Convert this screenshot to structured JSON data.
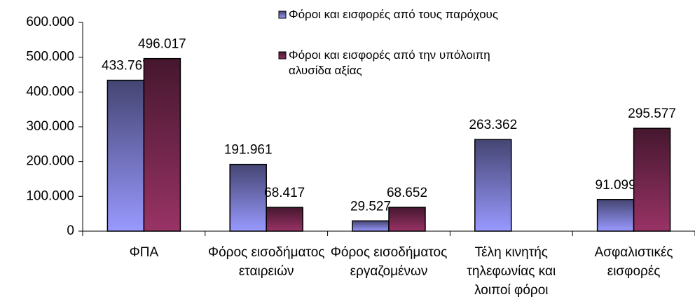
{
  "chart_data": {
    "type": "bar",
    "categories": [
      "ΦΠΑ",
      "Φόρος εισοδήματος εταιρειών",
      "Φόρος εισοδήματος εργαζομένων",
      "Τέλη κινητής τηλεφωνίας και λοιποί φόροι",
      "Ασφαλιστικές εισφορές"
    ],
    "series": [
      {
        "name": "Φόροι και εισφορές από τους παρόχους",
        "color": "#9999ff",
        "values": [
          433767,
          191961,
          29527,
          263362,
          91099
        ],
        "value_labels": [
          "433.767",
          "191.961",
          "29.527",
          "263.362",
          "91.099"
        ]
      },
      {
        "name": "Φόροι και εισφορές από την υπόλοιπη αλυσίδα αξίας",
        "color": "#993366",
        "values": [
          496017,
          68417,
          68652,
          null,
          295577
        ],
        "value_labels": [
          "496.017",
          "68.417",
          "68.652",
          null,
          "295.577"
        ]
      }
    ],
    "ylim": [
      0,
      600000
    ],
    "yticks": [
      0,
      {
        "value": 100000,
        "label": "100.000"
      },
      {
        "value": 200000,
        "label": "200.000"
      },
      {
        "value": 300000,
        "label": "300.000"
      },
      {
        "value": 400000,
        "label": "400.000"
      },
      {
        "value": 500000,
        "label": "500.000"
      },
      {
        "value": 600000,
        "label": "600.000"
      }
    ],
    "legend": "top-right"
  }
}
